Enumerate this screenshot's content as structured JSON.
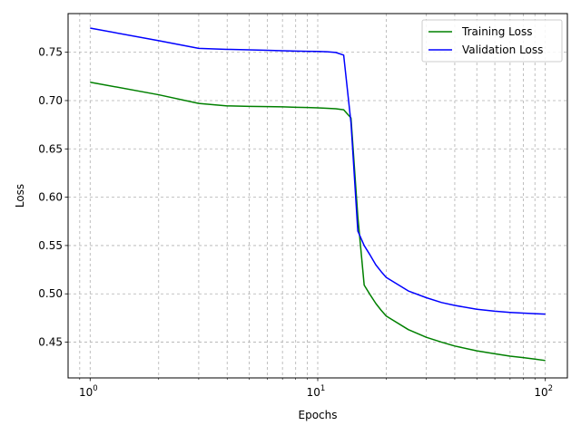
{
  "chart_data": {
    "type": "line",
    "title": "",
    "xlabel": "Epochs",
    "ylabel": "Loss",
    "xscale": "log",
    "xlim": [
      0.8,
      125
    ],
    "ylim": [
      0.413,
      0.79
    ],
    "grid": "on (major and minor)",
    "legend_placement": "upper-right",
    "x_ticks": [
      {
        "value": 1,
        "base": "10",
        "exp": "0"
      },
      {
        "value": 10,
        "base": "10",
        "exp": "1"
      },
      {
        "value": 100,
        "base": "10",
        "exp": "2"
      }
    ],
    "y_ticks": [
      {
        "value": 0.45,
        "label": "0.45"
      },
      {
        "value": 0.5,
        "label": "0.50"
      },
      {
        "value": 0.55,
        "label": "0.55"
      },
      {
        "value": 0.6,
        "label": "0.60"
      },
      {
        "value": 0.65,
        "label": "0.65"
      },
      {
        "value": 0.7,
        "label": "0.70"
      },
      {
        "value": 0.75,
        "label": "0.75"
      }
    ],
    "series": [
      {
        "name": "Training Loss",
        "color": "#008000",
        "x": [
          1,
          2,
          3,
          4,
          5,
          6,
          7,
          8,
          9,
          10,
          11,
          12,
          13,
          14,
          15,
          16,
          17,
          18,
          19,
          20,
          25,
          30,
          35,
          40,
          50,
          60,
          70,
          80,
          90,
          100
        ],
        "y": [
          0.719,
          0.706,
          0.697,
          0.6945,
          0.694,
          0.6938,
          0.6935,
          0.693,
          0.6928,
          0.6925,
          0.692,
          0.6915,
          0.6905,
          0.682,
          0.58,
          0.509,
          0.499,
          0.49,
          0.483,
          0.477,
          0.463,
          0.455,
          0.45,
          0.446,
          0.441,
          0.438,
          0.4355,
          0.434,
          0.4325,
          0.431
        ]
      },
      {
        "name": "Validation Loss",
        "color": "#0000ff",
        "x": [
          1,
          2,
          3,
          4,
          5,
          6,
          7,
          8,
          9,
          10,
          11,
          12,
          13,
          14,
          15,
          16,
          17,
          18,
          19,
          20,
          25,
          30,
          35,
          40,
          50,
          60,
          70,
          80,
          90,
          100
        ],
        "y": [
          0.775,
          0.762,
          0.754,
          0.753,
          0.7525,
          0.752,
          0.7515,
          0.7512,
          0.751,
          0.7508,
          0.7505,
          0.7498,
          0.747,
          0.677,
          0.565,
          0.55,
          0.54,
          0.53,
          0.523,
          0.517,
          0.503,
          0.496,
          0.491,
          0.488,
          0.484,
          0.482,
          0.4808,
          0.48,
          0.4795,
          0.479
        ]
      }
    ]
  }
}
